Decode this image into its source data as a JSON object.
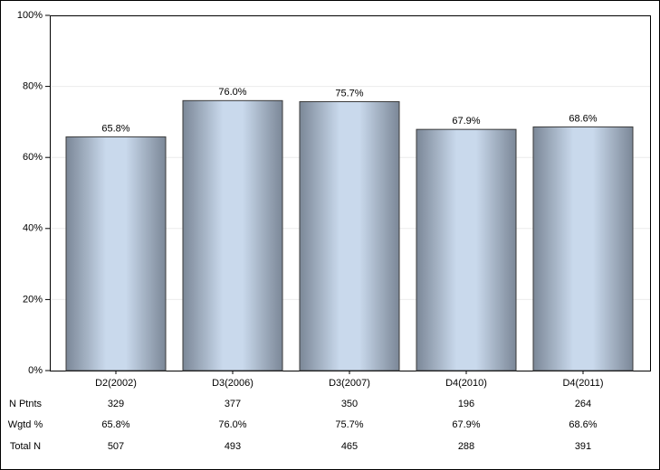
{
  "chart_data": {
    "type": "bar",
    "categories": [
      "D2(2002)",
      "D3(2006)",
      "D3(2007)",
      "D4(2010)",
      "D4(2011)"
    ],
    "values": [
      65.8,
      76.0,
      75.7,
      67.9,
      68.6
    ],
    "value_labels": [
      "65.8%",
      "76.0%",
      "75.7%",
      "67.9%",
      "68.6%"
    ],
    "ylim": [
      0,
      100
    ],
    "yticks": [
      {
        "value": 0,
        "label": "0%"
      },
      {
        "value": 20,
        "label": "20%"
      },
      {
        "value": 40,
        "label": "40%"
      },
      {
        "value": 60,
        "label": "60%"
      },
      {
        "value": 80,
        "label": "80%"
      },
      {
        "value": 100,
        "label": "100%"
      }
    ],
    "grid": true,
    "table": [
      {
        "label": "N Ptnts",
        "values": [
          "329",
          "377",
          "350",
          "196",
          "264"
        ]
      },
      {
        "label": "Wgtd %",
        "values": [
          "65.8%",
          "76.0%",
          "75.7%",
          "67.9%",
          "68.6%"
        ]
      },
      {
        "label": "Total N",
        "values": [
          "507",
          "493",
          "465",
          "288",
          "391"
        ]
      }
    ]
  }
}
